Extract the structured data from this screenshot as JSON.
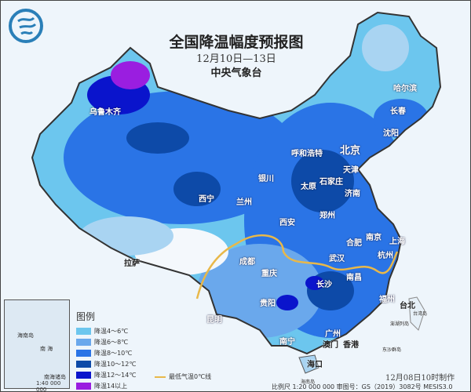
{
  "header": {
    "title": "全国降温幅度预报图",
    "date_range": "12月10日—13日",
    "agency": "中央气象台"
  },
  "logo": {
    "icon": "cma-logo",
    "color": "#2a7fb8"
  },
  "cities": {
    "urumqi": "乌鲁木齐",
    "lhasa": "拉萨",
    "xining": "西宁",
    "lanzhou": "兰州",
    "yinchuan": "银川",
    "hohhot": "呼和浩特",
    "beijing": "北京",
    "tianjin": "天津",
    "shijiazhuang": "石家庄",
    "taiyuan": "太原",
    "jinan": "济南",
    "zhengzhou": "郑州",
    "xian": "西安",
    "chengdu": "成都",
    "chongqing": "重庆",
    "wuhan": "武汉",
    "hefei": "合肥",
    "nanjing": "南京",
    "shanghai": "上海",
    "hangzhou": "杭州",
    "changsha": "长沙",
    "nanchang": "南昌",
    "fuzhou": "福州",
    "guiyang": "贵阳",
    "kunming": "昆明",
    "nanning": "南宁",
    "guangzhou": "广州",
    "macau": "澳门",
    "hongkong": "香港",
    "haikou": "海口",
    "taipei": "台北",
    "harbin": "哈尔滨",
    "changchun": "长春",
    "shenyang": "沈阳"
  },
  "islands": {
    "taiwan": "台湾岛",
    "penghu": "澎湖列岛",
    "dongsha": "东沙群岛",
    "hainan": "海南岛"
  },
  "inset": {
    "hainan": "海南岛",
    "sea": "南 海",
    "nanhai_islands": "南海诸岛",
    "scale": "1:40 000 000"
  },
  "legend": {
    "title": "图例",
    "items": [
      {
        "label": "降温4～6℃",
        "color": "#6cc6ee"
      },
      {
        "label": "降温6～8℃",
        "color": "#6aa8ec"
      },
      {
        "label": "降温8～10℃",
        "color": "#2a74e6"
      },
      {
        "label": "降温10～12℃",
        "color": "#0d4aa8"
      },
      {
        "label": "降温12～14℃",
        "color": "#0a14cc"
      },
      {
        "label": "降温14以上",
        "color": "#9a1ee0"
      }
    ],
    "zero_line": {
      "label": "最低气温0℃线",
      "color": "#e8b84a"
    }
  },
  "footer": {
    "made": "12月08日10时制作",
    "info": "比例尺 1:20 000 000  审图号：GS（2019）3082号 MESIS3.0"
  }
}
